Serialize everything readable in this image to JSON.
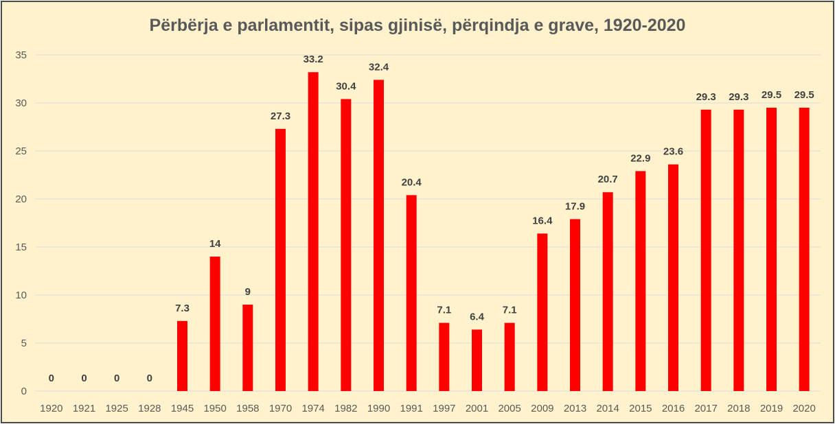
{
  "chart_data": {
    "type": "bar",
    "title": "Përbërja e parlamentit, sipas gjinisë, përqindja e grave, 1920-2020",
    "xlabel": "",
    "ylabel": "",
    "ylim": [
      0,
      35
    ],
    "yticks": [
      "0",
      "5",
      "10",
      "15",
      "20",
      "25",
      "30",
      "35"
    ],
    "categories": [
      "1920",
      "1921",
      "1925",
      "1928",
      "1945",
      "1950",
      "1958",
      "1970",
      "1974",
      "1982",
      "1990",
      "1991",
      "1997",
      "2001",
      "2005",
      "2009",
      "2013",
      "2014",
      "2015",
      "2016",
      "2017",
      "2018",
      "2019",
      "2020"
    ],
    "values": [
      0,
      0,
      0,
      0,
      7.3,
      14,
      9,
      27.3,
      33.2,
      30.4,
      32.4,
      20.4,
      7.1,
      6.4,
      7.1,
      16.4,
      17.9,
      20.7,
      22.9,
      23.6,
      29.3,
      29.3,
      29.5,
      29.5
    ],
    "data_labels": [
      "0",
      "0",
      "0",
      "0",
      "7.3",
      "14",
      "9",
      "27.3",
      "33.2",
      "30.4",
      "32.4",
      "20.4",
      "7.1",
      "6.4",
      "7.1",
      "16.4",
      "17.9",
      "20.7",
      "22.9",
      "23.6",
      "29.3",
      "29.3",
      "29.5",
      "29.5"
    ],
    "grid": true,
    "legend": "none",
    "colors": {
      "bar": "#ff0000",
      "background": "#fff2cc",
      "gridline": "#d9d9d9",
      "text": "#595959",
      "label": "#404040"
    }
  }
}
